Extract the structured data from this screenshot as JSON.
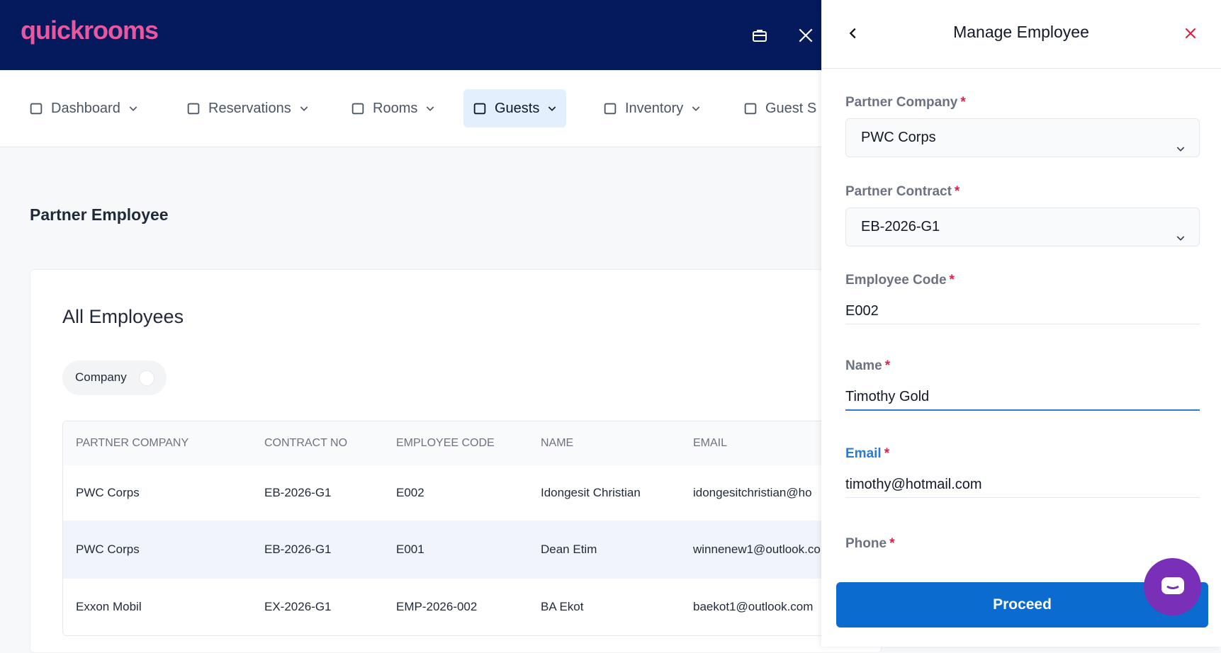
{
  "header": {
    "logo": "quickrooms"
  },
  "nav": [
    "Dashboard",
    "Reservations",
    "Rooms",
    "Guests",
    "Inventory",
    "Guest S"
  ],
  "page": {
    "title": "Partner Employee"
  },
  "card": {
    "title": "All Employees",
    "filter": "Company"
  },
  "table": {
    "headers": [
      "PARTNER COMPANY",
      "CONTRACT NO",
      "EMPLOYEE CODE",
      "NAME",
      "EMAIL"
    ],
    "rows": [
      [
        "PWC Corps",
        "EB-2026-G1",
        "E002",
        "Idongesit Christian",
        "idongesitchristian@ho"
      ],
      [
        "PWC Corps",
        "EB-2026-G1",
        "E001",
        "Dean Etim",
        "winnenew1@outlook.co"
      ],
      [
        "Exxon Mobil",
        "EX-2026-G1",
        "EMP-2026-002",
        "BA Ekot",
        "baekot1@outlook.com"
      ]
    ]
  },
  "panel": {
    "title": "Manage Employee",
    "fields": [
      {
        "label": "Partner Company",
        "required": "*",
        "value": "PWC Corps"
      },
      {
        "label": "Partner Contract",
        "required": "*",
        "value": "EB-2026-G1"
      },
      {
        "label": "Employee Code",
        "required": "*",
        "value": "E002"
      },
      {
        "label": "Name",
        "required": "*",
        "value": "Timothy Gold"
      },
      {
        "label": "Email",
        "required": "*",
        "value": "timothy@hotmail.com"
      },
      {
        "label": "Phone",
        "required": "*"
      }
    ],
    "button": "Proceed"
  }
}
